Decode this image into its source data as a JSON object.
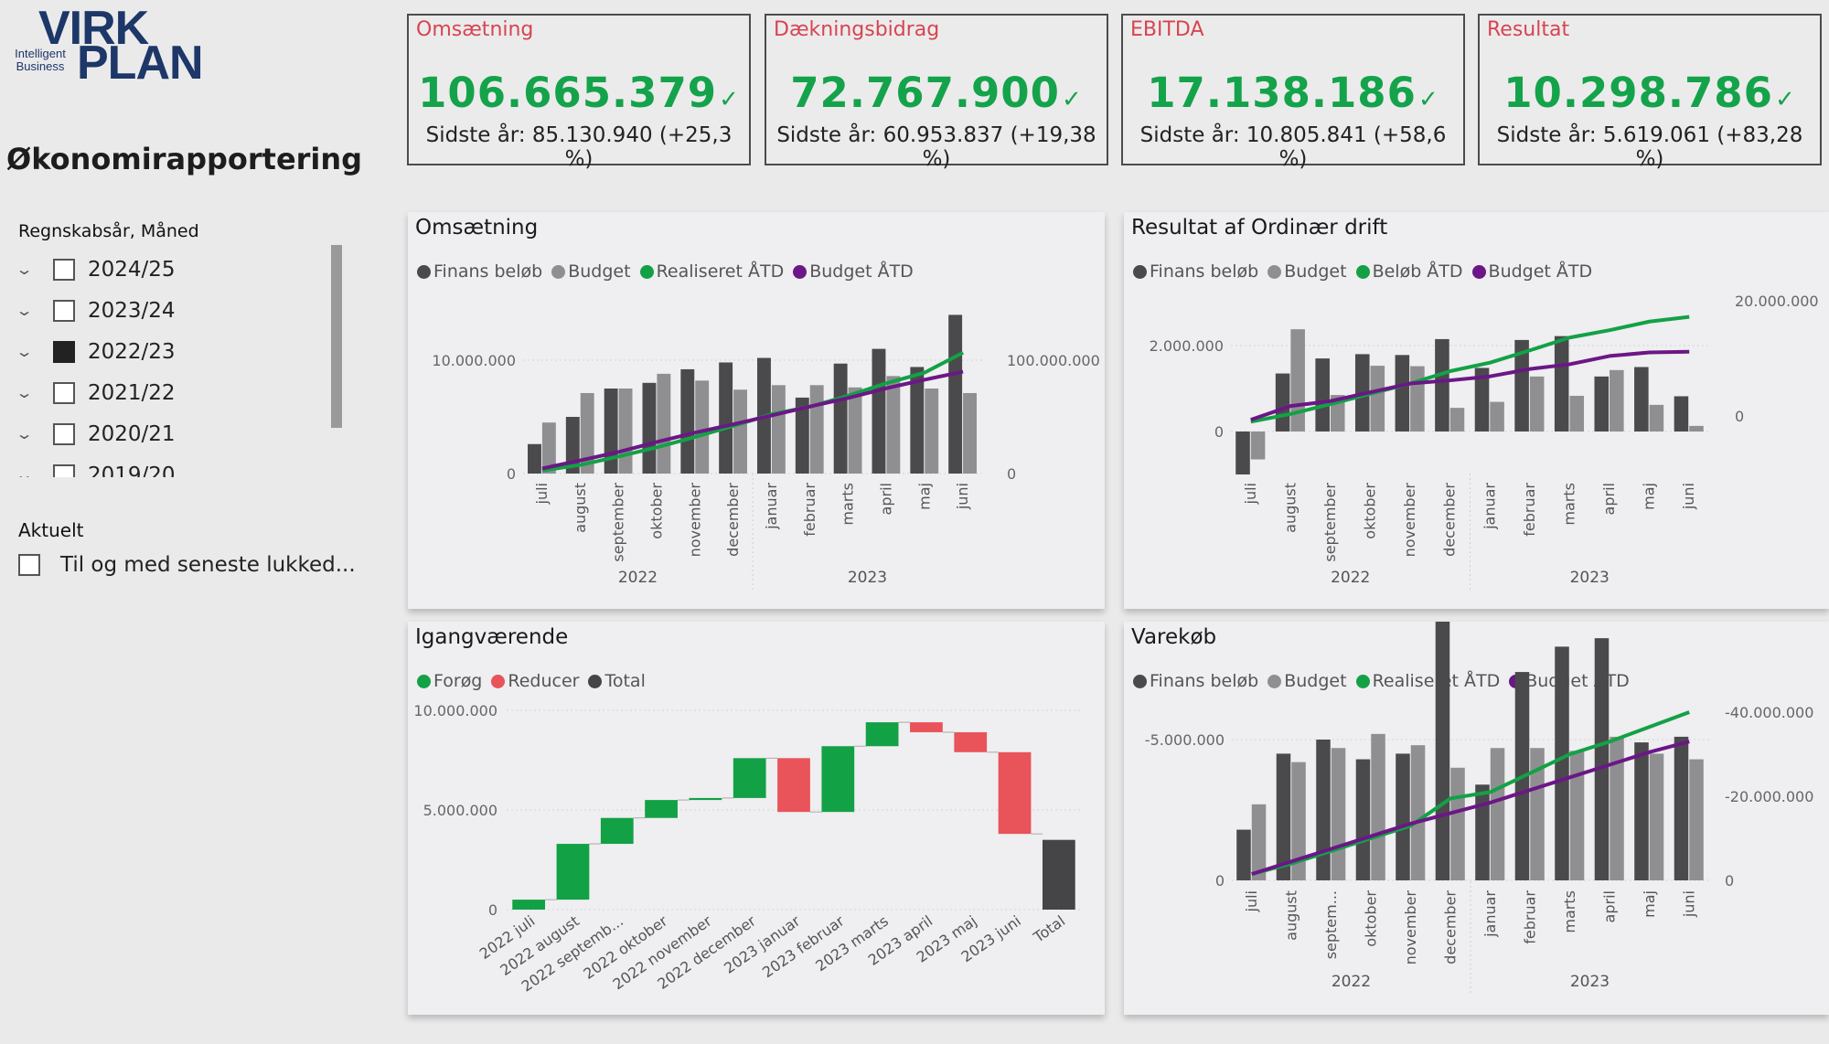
{
  "logo": {
    "line1": "VIRK",
    "line2": "PLAN",
    "tagline1": "Intelligent",
    "tagline2": "Business"
  },
  "page_title": "Økonomirapportering",
  "slicer": {
    "title": "Regnskabsår, Måned",
    "items": [
      {
        "label": "2024/25",
        "checked": false
      },
      {
        "label": "2023/24",
        "checked": false
      },
      {
        "label": "2022/23",
        "checked": true
      },
      {
        "label": "2021/22",
        "checked": false
      },
      {
        "label": "2020/21",
        "checked": false
      },
      {
        "label": "2019/20",
        "checked": false
      }
    ]
  },
  "aktuelt": {
    "title": "Aktuelt",
    "item_label": "Til og med seneste lukked..."
  },
  "kpis": [
    {
      "title": "Omsætning",
      "value": "106.665.379",
      "sub": "Sidste år: 85.130.940 (+25,3 %)"
    },
    {
      "title": "Dækningsbidrag",
      "value": "72.767.900",
      "sub": "Sidste år: 60.953.837 (+19,38 %)"
    },
    {
      "title": "EBITDA",
      "value": "17.138.186",
      "sub": "Sidste år: 10.805.841 (+58,6 %)"
    },
    {
      "title": "Resultat",
      "value": "10.298.786",
      "sub": "Sidste år: 5.619.061 (+83,28 %)"
    }
  ],
  "check_glyph": "✓",
  "colors": {
    "bar_dark": "#4a4a4c",
    "bar_light": "#8f8f91",
    "green": "#13a146",
    "purple": "#6b1786",
    "red": "#e8545a",
    "total": "#454547",
    "kpi_title": "#d64550",
    "kpi_value": "#14a34b"
  },
  "chart_data": [
    {
      "id": "omsaetning",
      "type": "bar",
      "title": "Omsætning",
      "legend": [
        "Finans beløb",
        "Budget",
        "Realiseret ÅTD",
        "Budget ÅTD"
      ],
      "categories": [
        "juli",
        "august",
        "september",
        "oktober",
        "november",
        "december",
        "januar",
        "februar",
        "marts",
        "april",
        "maj",
        "juni"
      ],
      "year_groups": [
        {
          "label": "2022",
          "count": 6
        },
        {
          "label": "2023",
          "count": 6
        }
      ],
      "series": [
        {
          "name": "Finans beløb",
          "axis": "left",
          "values": [
            2600000,
            5000000,
            7500000,
            8000000,
            9200000,
            9800000,
            10200000,
            6700000,
            9700000,
            11000000,
            9400000,
            14000000
          ]
        },
        {
          "name": "Budget",
          "axis": "left",
          "values": [
            4500000,
            7100000,
            7500000,
            8800000,
            8200000,
            7400000,
            7800000,
            7800000,
            7600000,
            8600000,
            7500000,
            7100000
          ]
        },
        {
          "name": "Realiseret ÅTD",
          "axis": "right",
          "type": "line",
          "values": [
            2600000,
            7600000,
            15100000,
            23100000,
            32300000,
            42100000,
            52300000,
            59000000,
            68700000,
            79700000,
            89100000,
            106665379
          ]
        },
        {
          "name": "Budget ÅTD",
          "axis": "right",
          "type": "line",
          "values": [
            4500000,
            11600000,
            19100000,
            27900000,
            36100000,
            43500000,
            51300000,
            59100000,
            66700000,
            75300000,
            82800000,
            89900000
          ]
        }
      ],
      "left_axis": {
        "ticks": [
          "10.000.000",
          "0"
        ],
        "range": [
          0,
          14000000
        ]
      },
      "right_axis": {
        "ticks": [
          "100.000.000",
          "0"
        ],
        "range": [
          0,
          140000000
        ]
      }
    },
    {
      "id": "resultat",
      "type": "bar",
      "title": "Resultat af Ordinær drift",
      "legend": [
        "Finans beløb",
        "Budget",
        "Beløb ÅTD",
        "Budget ÅTD"
      ],
      "categories": [
        "juli",
        "august",
        "september",
        "oktober",
        "november",
        "december",
        "januar",
        "februar",
        "marts",
        "april",
        "maj",
        "juni"
      ],
      "year_groups": [
        {
          "label": "2022",
          "count": 6
        },
        {
          "label": "2023",
          "count": 6
        }
      ],
      "series": [
        {
          "name": "Finans beløb",
          "axis": "left",
          "values": [
            -1000000,
            1350000,
            1700000,
            1800000,
            1780000,
            2150000,
            1480000,
            2130000,
            2220000,
            1280000,
            1500000,
            820000
          ]
        },
        {
          "name": "Budget",
          "axis": "left",
          "values": [
            -650000,
            2380000,
            850000,
            1530000,
            1520000,
            550000,
            690000,
            1280000,
            830000,
            1430000,
            620000,
            130000
          ]
        },
        {
          "name": "Beløb ÅTD",
          "axis": "right",
          "type": "line",
          "values": [
            -1000000,
            350000,
            2050000,
            3850000,
            5630000,
            7780000,
            9260000,
            11390000,
            13610000,
            14890000,
            16390000,
            17210000
          ]
        },
        {
          "name": "Budget ÅTD",
          "axis": "right",
          "type": "line",
          "values": [
            -650000,
            1730000,
            2580000,
            4110000,
            5630000,
            6180000,
            6870000,
            8150000,
            8980000,
            10410000,
            11030000,
            11160000
          ]
        }
      ],
      "left_axis": {
        "ticks": [
          "2.000.000",
          "0"
        ],
        "range": [
          -1000000,
          3000000
        ]
      },
      "right_axis": {
        "ticks": [
          "20.000.000",
          "0"
        ],
        "range": [
          -5000000,
          20000000
        ]
      }
    },
    {
      "id": "igangvaerende",
      "type": "waterfall",
      "title": "Igangværende",
      "legend": [
        "Forøg",
        "Reducer",
        "Total"
      ],
      "categories": [
        "2022 juli",
        "2022 august",
        "2022 septemb...",
        "2022 oktober",
        "2022 november",
        "2022 december",
        "2023 januar",
        "2023 februar",
        "2023 marts",
        "2023 april",
        "2023 maj",
        "2023 juni",
        "Total"
      ],
      "deltas": [
        500000,
        2800000,
        1300000,
        900000,
        100000,
        2000000,
        -2700000,
        3300000,
        1200000,
        -500000,
        -1000000,
        -4100000
      ],
      "total": 3500000,
      "axis": {
        "ticks": [
          "10.000.000",
          "5.000.000",
          "0"
        ],
        "range": [
          0,
          10000000
        ]
      }
    },
    {
      "id": "varekoeb",
      "type": "bar",
      "title": "Varekøb",
      "legend": [
        "Finans beløb",
        "Budget",
        "Realiseret ÅTD",
        "Budget ÅTD"
      ],
      "categories": [
        "juli",
        "august",
        "septem...",
        "oktober",
        "november",
        "december",
        "januar",
        "februar",
        "marts",
        "april",
        "maj",
        "juni"
      ],
      "year_groups": [
        {
          "label": "2022",
          "count": 6
        },
        {
          "label": "2023",
          "count": 6
        }
      ],
      "series": [
        {
          "name": "Finans beløb",
          "axis": "left",
          "values": [
            -1800000,
            -4500000,
            -5000000,
            -4300000,
            -4500000,
            -9500000,
            -3400000,
            -7400000,
            -8300000,
            -8600000,
            -4900000,
            -5100000
          ]
        },
        {
          "name": "Budget",
          "axis": "left",
          "values": [
            -2700000,
            -4200000,
            -4700000,
            -5200000,
            -4800000,
            -4000000,
            -4700000,
            -4700000,
            -4600000,
            -5100000,
            -4500000,
            -4300000
          ]
        },
        {
          "name": "Realiseret ÅTD",
          "axis": "right",
          "type": "line",
          "values": [
            -1500000,
            -4000000,
            -7000000,
            -10000000,
            -13000000,
            -19500000,
            -21000000,
            -25500000,
            -30000000,
            -33000000,
            -36500000,
            -40000000
          ]
        },
        {
          "name": "Budget ÅTD",
          "axis": "right",
          "type": "line",
          "values": [
            -1500000,
            -4500000,
            -7500000,
            -10500000,
            -13500000,
            -16000000,
            -18500000,
            -21500000,
            -24500000,
            -27500000,
            -30500000,
            -33000000
          ]
        }
      ],
      "left_axis": {
        "ticks": [
          "-5.000.000",
          "0"
        ],
        "range": [
          0,
          -10000000
        ]
      },
      "right_axis": {
        "ticks": [
          "-40.000.000",
          "-20.000.000",
          "0"
        ],
        "range": [
          0,
          -50000000
        ]
      }
    }
  ]
}
